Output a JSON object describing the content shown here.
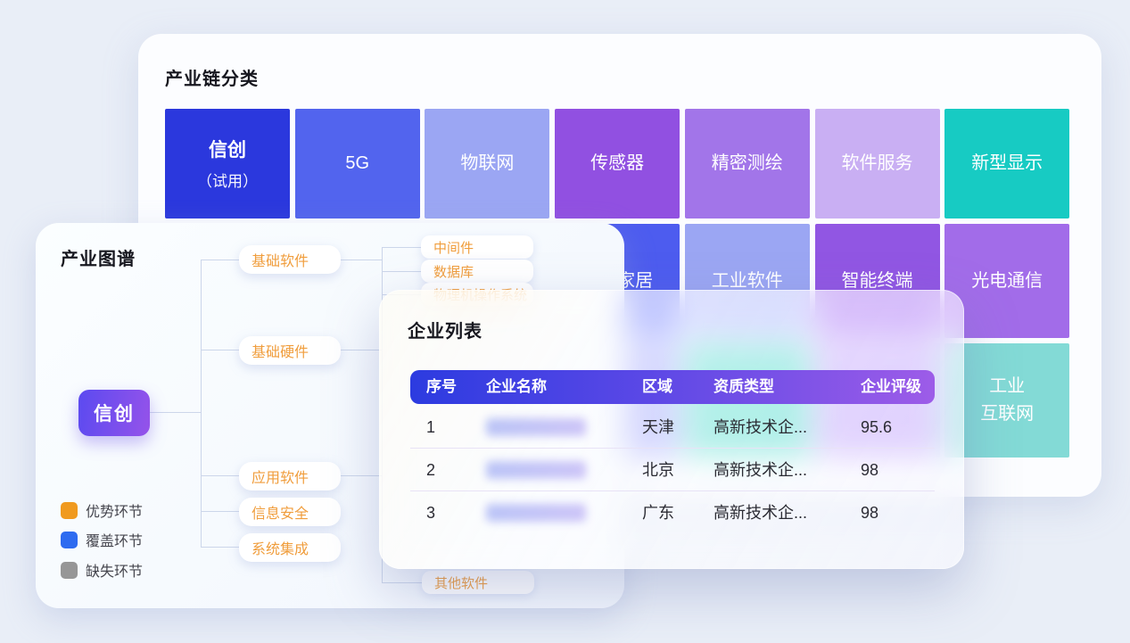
{
  "industry_card": {
    "title": "产业链分类",
    "tiles": [
      {
        "label": "信创",
        "sublabel": "（试用）",
        "color": "#2b38dd",
        "row": 0,
        "col": 0
      },
      {
        "label": "5G",
        "color": "#5264ee",
        "row": 0,
        "col": 1
      },
      {
        "label": "物联网",
        "color": "#9ba6f3",
        "row": 0,
        "col": 2
      },
      {
        "label": "传感器",
        "color": "#9150e1",
        "row": 0,
        "col": 3
      },
      {
        "label": "精密测绘",
        "color": "#a275e9",
        "row": 0,
        "col": 4
      },
      {
        "label": "软件服务",
        "color": "#c9aff3",
        "row": 0,
        "col": 5
      },
      {
        "label": "新型显示",
        "color": "#17cbc3",
        "row": 0,
        "col": 6
      },
      {
        "label": "智能家居",
        "color": "#4d5cef",
        "row": 1,
        "col": 3
      },
      {
        "label": "工业软件",
        "color": "#9ba6f3",
        "row": 1,
        "col": 4
      },
      {
        "label": "智能终端",
        "color": "#9156e3",
        "row": 1,
        "col": 5
      },
      {
        "label": "光电通信",
        "color": "#a26ce9",
        "row": 1,
        "col": 6
      },
      {
        "label": "",
        "color": "#8a8ff0",
        "row": 2,
        "col": 3
      },
      {
        "label": "",
        "color": "#3ed2c0",
        "row": 2,
        "col": 4
      },
      {
        "label": "",
        "color": "#b393f0",
        "row": 2,
        "col": 5
      },
      {
        "label": "工业互联网",
        "lines": [
          "工业",
          "互联网"
        ],
        "color": "#83dad6",
        "row": 2,
        "col": 6
      }
    ]
  },
  "map_card": {
    "title": "产业图谱",
    "root_label": "信创",
    "branches": [
      "基础软件",
      "基础硬件",
      "应用软件",
      "信息安全",
      "系统集成"
    ],
    "children": [
      "中间件",
      "数据库",
      "物理机操作系统",
      "其他软件"
    ],
    "legend": [
      {
        "label": "优势环节",
        "color": "#f09a1f"
      },
      {
        "label": "覆盖环节",
        "color": "#2e6bf0"
      },
      {
        "label": "缺失环节",
        "color": "#969696"
      }
    ]
  },
  "enterprise_modal": {
    "title": "企业列表",
    "columns": [
      "序号",
      "企业名称",
      "区域",
      "资质类型",
      "企业评级"
    ],
    "rows": [
      {
        "index": "1",
        "name_blurred": true,
        "region": "天津",
        "qualification": "高新技术企...",
        "rating": "95.6"
      },
      {
        "index": "2",
        "name_blurred": true,
        "region": "北京",
        "qualification": "高新技术企...",
        "rating": "98"
      },
      {
        "index": "3",
        "name_blurred": true,
        "region": "广东",
        "qualification": "高新技术企...",
        "rating": "98"
      }
    ]
  }
}
